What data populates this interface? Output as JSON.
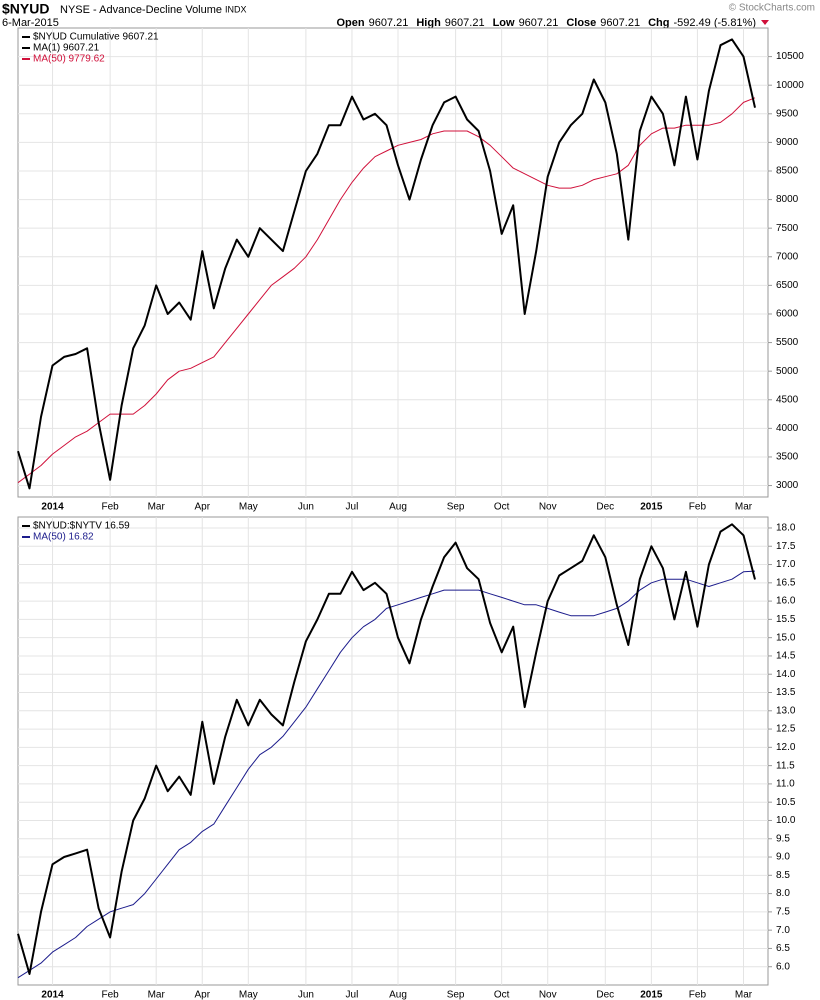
{
  "header": {
    "symbol": "$NYUD",
    "name": "NYSE - Advance-Decline Volume",
    "exchange": "INDX",
    "date": "6-Mar-2015",
    "copyright": "© StockCharts.com",
    "quote": [
      {
        "label": "Open",
        "value": "9607.21"
      },
      {
        "label": "High",
        "value": "9607.21"
      },
      {
        "label": "Low",
        "value": "9607.21"
      },
      {
        "label": "Close",
        "value": "9607.21"
      },
      {
        "label": "Chg",
        "value": "-592.49 (-5.81%)"
      }
    ]
  },
  "chart_data": [
    {
      "type": "line",
      "categories": [
        null,
        null,
        null,
        "2014",
        null,
        null,
        null,
        null,
        "Feb",
        null,
        null,
        null,
        "Mar",
        null,
        null,
        null,
        "Apr",
        null,
        null,
        null,
        "May",
        null,
        null,
        null,
        null,
        "Jun",
        null,
        null,
        null,
        "Jul",
        null,
        null,
        null,
        "Aug",
        null,
        null,
        null,
        null,
        "Sep",
        null,
        null,
        null,
        "Oct",
        null,
        null,
        null,
        "Nov",
        null,
        null,
        null,
        null,
        "Dec",
        null,
        null,
        null,
        "2015",
        null,
        null,
        null,
        "Feb",
        null,
        null,
        null,
        "Mar",
        null
      ],
      "series": [
        {
          "name": "$NYUD Cumulative 9607.21",
          "color": "#000000",
          "values": [
            3600,
            2950,
            4200,
            5100,
            5250,
            5300,
            5400,
            4100,
            3100,
            4400,
            5400,
            5800,
            6500,
            6000,
            6200,
            5900,
            7100,
            6100,
            6800,
            7300,
            7000,
            7500,
            7300,
            7100,
            7800,
            8500,
            8800,
            9300,
            9300,
            9800,
            9400,
            9500,
            9300,
            8600,
            8000,
            8700,
            9300,
            9700,
            9800,
            9400,
            9200,
            8500,
            7400,
            7900,
            6000,
            7100,
            8400,
            9000,
            9300,
            9500,
            10100,
            9700,
            8800,
            7300,
            9200,
            9800,
            9500,
            8600,
            9800,
            8700,
            9900,
            10700,
            10800,
            10500,
            9607.21
          ]
        },
        {
          "name": "MA(50) 9779.62",
          "color": "#d0103a",
          "values": [
            3050,
            3200,
            3350,
            3550,
            3700,
            3850,
            3950,
            4100,
            4250,
            4250,
            4250,
            4400,
            4600,
            4850,
            5000,
            5050,
            5150,
            5250,
            5500,
            5750,
            6000,
            6250,
            6500,
            6650,
            6800,
            7000,
            7300,
            7650,
            8000,
            8300,
            8550,
            8750,
            8850,
            8950,
            9000,
            9050,
            9150,
            9200,
            9200,
            9200,
            9100,
            8950,
            8750,
            8550,
            8450,
            8350,
            8250,
            8200,
            8200,
            8250,
            8350,
            8400,
            8450,
            8600,
            8950,
            9150,
            9250,
            9250,
            9300,
            9300,
            9300,
            9350,
            9500,
            9700,
            9779.62
          ]
        }
      ],
      "extra_legend": {
        "name": "MA(1) 9607.21",
        "color": "#000000"
      },
      "ylim": [
        2800,
        11000
      ],
      "yticks": [
        3000,
        3500,
        4000,
        4500,
        5000,
        5500,
        6000,
        6500,
        7000,
        7500,
        8000,
        8500,
        9000,
        9500,
        10000,
        10500
      ],
      "grid": true
    },
    {
      "type": "line",
      "categories": [
        null,
        null,
        null,
        "2014",
        null,
        null,
        null,
        null,
        "Feb",
        null,
        null,
        null,
        "Mar",
        null,
        null,
        null,
        "Apr",
        null,
        null,
        null,
        "May",
        null,
        null,
        null,
        null,
        "Jun",
        null,
        null,
        null,
        "Jul",
        null,
        null,
        null,
        "Aug",
        null,
        null,
        null,
        null,
        "Sep",
        null,
        null,
        null,
        "Oct",
        null,
        null,
        null,
        "Nov",
        null,
        null,
        null,
        null,
        "Dec",
        null,
        null,
        null,
        "2015",
        null,
        null,
        null,
        "Feb",
        null,
        null,
        null,
        "Mar",
        null
      ],
      "series": [
        {
          "name": "$NYUD:$NYTV 16.59",
          "color": "#000000",
          "values": [
            6.9,
            5.8,
            7.5,
            8.8,
            9.0,
            9.1,
            9.2,
            7.6,
            6.8,
            8.6,
            10.0,
            10.6,
            11.5,
            10.8,
            11.2,
            10.7,
            12.7,
            11.0,
            12.3,
            13.3,
            12.6,
            13.3,
            12.9,
            12.6,
            13.8,
            14.9,
            15.5,
            16.2,
            16.2,
            16.8,
            16.3,
            16.5,
            16.2,
            15.0,
            14.3,
            15.5,
            16.4,
            17.2,
            17.6,
            16.9,
            16.6,
            15.4,
            14.6,
            15.3,
            13.1,
            14.6,
            16.0,
            16.7,
            16.9,
            17.1,
            17.8,
            17.2,
            15.9,
            14.8,
            16.6,
            17.5,
            16.9,
            15.5,
            16.8,
            15.3,
            17.0,
            17.9,
            18.1,
            17.8,
            16.59
          ]
        },
        {
          "name": "MA(50) 16.82",
          "color": "#1c1c8c",
          "values": [
            5.7,
            5.9,
            6.1,
            6.4,
            6.6,
            6.8,
            7.1,
            7.3,
            7.5,
            7.6,
            7.7,
            8.0,
            8.4,
            8.8,
            9.2,
            9.4,
            9.7,
            9.9,
            10.4,
            10.9,
            11.4,
            11.8,
            12.0,
            12.3,
            12.7,
            13.1,
            13.6,
            14.1,
            14.6,
            15.0,
            15.3,
            15.5,
            15.8,
            15.9,
            16.0,
            16.1,
            16.2,
            16.3,
            16.3,
            16.3,
            16.3,
            16.2,
            16.1,
            16.0,
            15.9,
            15.9,
            15.8,
            15.7,
            15.6,
            15.6,
            15.6,
            15.7,
            15.8,
            16.0,
            16.3,
            16.5,
            16.6,
            16.6,
            16.6,
            16.5,
            16.4,
            16.5,
            16.6,
            16.8,
            16.82
          ]
        }
      ],
      "ylim": [
        5.5,
        18.3
      ],
      "yticks": [
        {
          "value": 6,
          "label": "6.0"
        },
        6.5,
        {
          "value": 7,
          "label": "7.0"
        },
        7.5,
        {
          "value": 8,
          "label": "8.0"
        },
        8.5,
        {
          "value": 9,
          "label": "9.0"
        },
        9.5,
        {
          "value": 10,
          "label": "10.0"
        },
        10.5,
        {
          "value": 11,
          "label": "11.0"
        },
        11.5,
        {
          "value": 12,
          "label": "12.0"
        },
        12.5,
        {
          "value": 13,
          "label": "13.0"
        },
        13.5,
        {
          "value": 14,
          "label": "14.0"
        },
        14.5,
        {
          "value": 15,
          "label": "15.0"
        },
        15.5,
        {
          "value": 16,
          "label": "16.0"
        },
        16.5,
        {
          "value": 17,
          "label": "17.0"
        },
        17.5,
        {
          "value": 18,
          "label": "18.0"
        }
      ],
      "grid": true
    }
  ]
}
